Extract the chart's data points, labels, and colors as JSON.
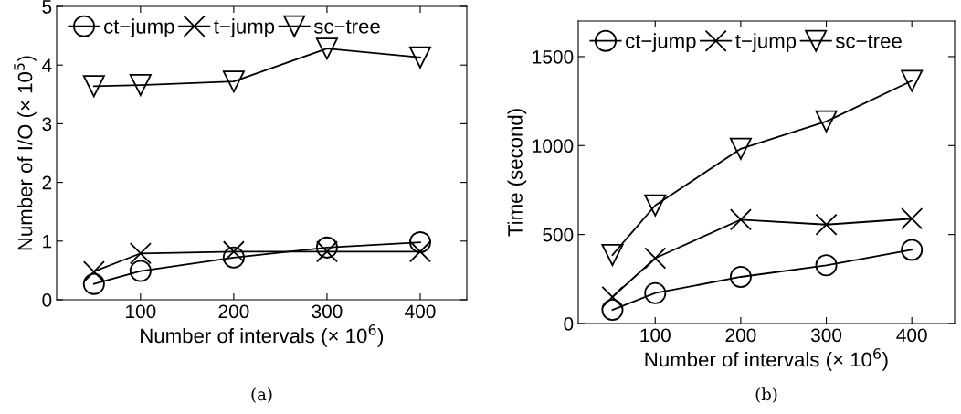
{
  "chart_data": [
    {
      "type": "line",
      "xlabel": "Number of intervals (× 10$^{6}$)",
      "ylabel": "Number of I/O (× 10$^{5}$)",
      "annotations": [
        "(a)"
      ],
      "x": [
        50,
        100,
        200,
        300,
        400
      ],
      "xlim": [
        10,
        450
      ],
      "xticks": [
        100,
        200,
        300,
        400
      ],
      "ylim": [
        0,
        5
      ],
      "yticks": [
        0,
        1,
        2,
        3,
        4,
        5
      ],
      "legend": "top left",
      "grid": false,
      "line_style": "solid",
      "series": [
        {
          "name": "ct−jump",
          "color": "#000000",
          "marker": "circle",
          "values": [
            0.27,
            0.49,
            0.72,
            0.89,
            0.98
          ]
        },
        {
          "name": "t−jump",
          "color": "#000000",
          "marker": "cross",
          "values": [
            0.48,
            0.79,
            0.82,
            0.82,
            0.82
          ]
        },
        {
          "name": "sc−tree",
          "color": "#000000",
          "marker": "triangle",
          "values": [
            3.64,
            3.66,
            3.72,
            4.28,
            4.13
          ]
        }
      ]
    },
    {
      "type": "line",
      "xlabel": "Number of intervals (× 10$^{6}$)",
      "ylabel": "Time (second)",
      "annotations": [
        "(b)"
      ],
      "x": [
        50,
        100,
        200,
        300,
        400
      ],
      "xlim": [
        10,
        450
      ],
      "xticks": [
        100,
        200,
        300,
        400
      ],
      "ylim": [
        0,
        1700
      ],
      "yticks": [
        0,
        500,
        1000,
        1500
      ],
      "legend": "top left",
      "grid": false,
      "line_style": "solid",
      "series": [
        {
          "name": "ct−jump",
          "color": "#000000",
          "marker": "circle",
          "values": [
            77,
            171,
            262,
            327,
            414
          ]
        },
        {
          "name": "t−jump",
          "color": "#000000",
          "marker": "cross",
          "values": [
            149,
            367,
            584,
            556,
            589
          ]
        },
        {
          "name": "sc−tree",
          "color": "#000000",
          "marker": "triangle",
          "values": [
            385,
            664,
            982,
            1136,
            1364
          ]
        }
      ]
    }
  ]
}
